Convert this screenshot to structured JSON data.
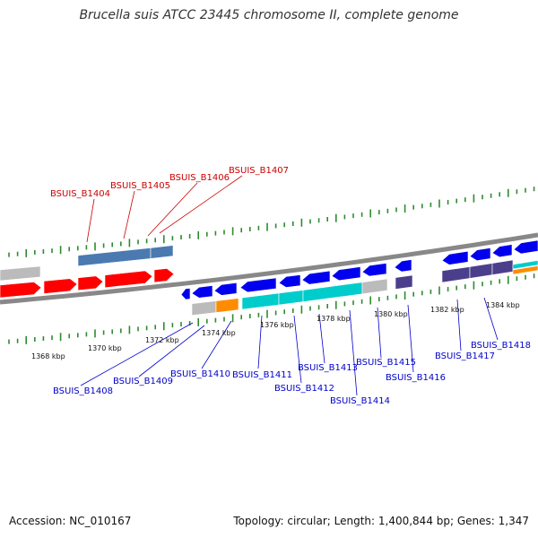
{
  "header": {
    "title": "Brucella suis ATCC 23445 chromosome II, complete genome"
  },
  "footer": {
    "accession": "Accession: NC_010167",
    "summary": "Topology: circular; Length: 1,400,844 bp; Genes: 1,347"
  },
  "colors": {
    "backbone": "#888888",
    "tick": "#2e8b2e",
    "forward_label": "#cc0000",
    "reverse_label": "#0000cc",
    "red_gene": "#ff0000",
    "blue_gene": "#0000ee",
    "cyan_gene": "#00cccc",
    "steelblue_gene": "#4a7ab0",
    "purple_gene": "#4b3f8c",
    "orange_gene": "#ff8c00",
    "grey_gene": "#bbbbbb"
  },
  "scale": {
    "unit": "kbp",
    "labels": [
      "1368 kbp",
      "1370 kbp",
      "1372 kbp",
      "1374 kbp",
      "1376 kbp",
      "1378 kbp",
      "1380 kbp",
      "1382 kbp",
      "1384 kbp"
    ]
  },
  "forward_labels": [
    "BSUIS_B1404",
    "BSUIS_B1405",
    "BSUIS_B1406",
    "BSUIS_B1407"
  ],
  "reverse_labels": [
    "BSUIS_B1408",
    "BSUIS_B1409",
    "BSUIS_B1410",
    "BSUIS_B1411",
    "BSUIS_B1412",
    "BSUIS_B1413",
    "BSUIS_B1414",
    "BSUIS_B1415",
    "BSUIS_B1416",
    "BSUIS_B1417",
    "BSUIS_B1418"
  ]
}
